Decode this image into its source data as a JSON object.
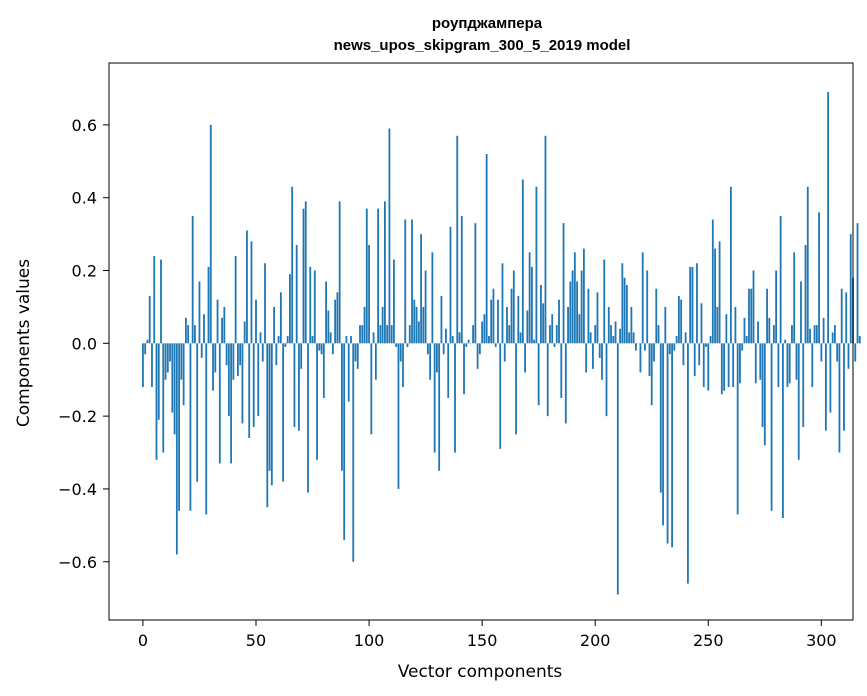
{
  "chart_data": {
    "type": "bar",
    "title": "роупджампера",
    "subtitle": "news_upos_skipgram_300_5_2019 model",
    "xlabel": "Vector components",
    "ylabel": "Components values",
    "xlim": [
      -15,
      314
    ],
    "ylim": [
      -0.76,
      0.77
    ],
    "xticks": [
      0,
      50,
      100,
      150,
      200,
      250,
      300
    ],
    "xtick_labels": [
      "0",
      "50",
      "100",
      "150",
      "200",
      "250",
      "300"
    ],
    "yticks": [
      -0.6,
      -0.4,
      -0.2,
      0.0,
      0.2,
      0.4,
      0.6
    ],
    "ytick_labels": [
      "−0.6",
      "−0.4",
      "−0.2",
      "0.0",
      "0.2",
      "0.4",
      "0.6"
    ],
    "grid": false,
    "bar_color": "#1f77b4",
    "values": [
      -0.12,
      -0.03,
      0.01,
      0.13,
      -0.12,
      0.24,
      -0.32,
      -0.21,
      0.23,
      -0.3,
      -0.1,
      -0.08,
      -0.05,
      -0.19,
      -0.25,
      -0.58,
      -0.46,
      -0.1,
      -0.17,
      0.07,
      0.05,
      -0.46,
      0.35,
      0.05,
      -0.38,
      0.17,
      -0.04,
      0.08,
      -0.47,
      0.21,
      0.6,
      -0.13,
      -0.08,
      0.12,
      -0.33,
      0.07,
      0.1,
      -0.06,
      -0.2,
      -0.33,
      -0.1,
      0.24,
      -0.09,
      -0.06,
      -0.22,
      0.06,
      0.31,
      -0.26,
      0.28,
      -0.23,
      0.12,
      -0.2,
      0.03,
      -0.05,
      0.22,
      -0.45,
      -0.35,
      -0.39,
      0.1,
      -0.06,
      0.02,
      0.14,
      -0.38,
      -0.01,
      0.02,
      0.19,
      0.43,
      -0.23,
      0.27,
      -0.24,
      -0.07,
      0.37,
      0.39,
      -0.41,
      0.21,
      0.02,
      0.2,
      -0.32,
      -0.02,
      -0.03,
      -0.15,
      0.17,
      0.09,
      0.03,
      -0.03,
      0.12,
      0.14,
      0.39,
      -0.35,
      -0.54,
      0.02,
      -0.16,
      0.02,
      -0.6,
      -0.05,
      -0.07,
      0.05,
      0.05,
      0.1,
      0.37,
      0.27,
      -0.25,
      0.03,
      -0.1,
      0.37,
      0.05,
      0.1,
      0.39,
      0.05,
      0.59,
      0.05,
      0.23,
      -0.01,
      -0.4,
      -0.05,
      -0.12,
      0.34,
      -0.01,
      0.05,
      0.34,
      0.12,
      0.1,
      0.06,
      0.3,
      0.1,
      0.2,
      -0.03,
      -0.1,
      0.25,
      -0.3,
      -0.08,
      -0.35,
      0.13,
      -0.03,
      0.04,
      -0.15,
      0.32,
      0.02,
      -0.3,
      0.57,
      0.03,
      0.35,
      -0.14,
      -0.01,
      0.01,
      0.0,
      0.05,
      0.33,
      -0.07,
      -0.03,
      0.06,
      0.08,
      0.52,
      0.02,
      0.12,
      0.15,
      -0.01,
      0.12,
      -0.29,
      0.22,
      -0.05,
      0.1,
      0.05,
      0.15,
      0.2,
      -0.25,
      0.13,
      0.03,
      0.45,
      -0.08,
      0.09,
      0.25,
      0.21,
      0.01,
      0.43,
      -0.17,
      0.16,
      0.11,
      0.57,
      -0.2,
      0.05,
      0.08,
      -0.01,
      0.05,
      0.12,
      -0.15,
      0.33,
      -0.22,
      0.1,
      0.17,
      0.2,
      0.25,
      0.17,
      0.08,
      0.2,
      0.26,
      -0.08,
      0.15,
      0.03,
      -0.07,
      0.05,
      0.14,
      -0.04,
      -0.1,
      0.23,
      -0.2,
      0.1,
      0.05,
      0.02,
      0.06,
      -0.69,
      0.04,
      0.22,
      0.18,
      0.16,
      0.03,
      0.1,
      0.03,
      -0.02,
      0.0,
      -0.08,
      0.25,
      -0.02,
      0.2,
      -0.09,
      -0.17,
      -0.05,
      0.15,
      0.05,
      -0.41,
      -0.5,
      0.1,
      -0.55,
      -0.03,
      -0.56,
      -0.02,
      0.02,
      0.13,
      0.12,
      -0.06,
      0.03,
      -0.66,
      0.21,
      0.21,
      -0.09,
      0.22,
      -0.06,
      0.11,
      -0.12,
      -0.01,
      -0.13,
      0.02,
      0.34,
      0.26,
      0.1,
      0.28,
      -0.14,
      -0.13,
      0.08,
      -0.12,
      0.43,
      -0.12,
      0.1,
      -0.47,
      -0.11,
      -0.02,
      0.07,
      0.02,
      0.15,
      0.15,
      0.2,
      -0.11,
      0.06,
      -0.1,
      -0.23,
      -0.28,
      0.15,
      0.07,
      -0.46,
      0.05,
      0.2,
      -0.12,
      0.35,
      -0.48,
      0.01,
      -0.12,
      -0.11,
      0.05,
      0.25,
      -0.1,
      -0.32,
      0.17,
      -0.23,
      0.27,
      0.43,
      0.04,
      -0.12,
      0.05,
      0.05,
      0.36,
      -0.05,
      0.07,
      -0.24,
      0.69,
      -0.19,
      0.03,
      0.05,
      -0.05,
      -0.3,
      0.15,
      -0.24,
      0.14,
      -0.07,
      0.3,
      0.18,
      -0.05,
      0.33,
      0.02
    ]
  }
}
